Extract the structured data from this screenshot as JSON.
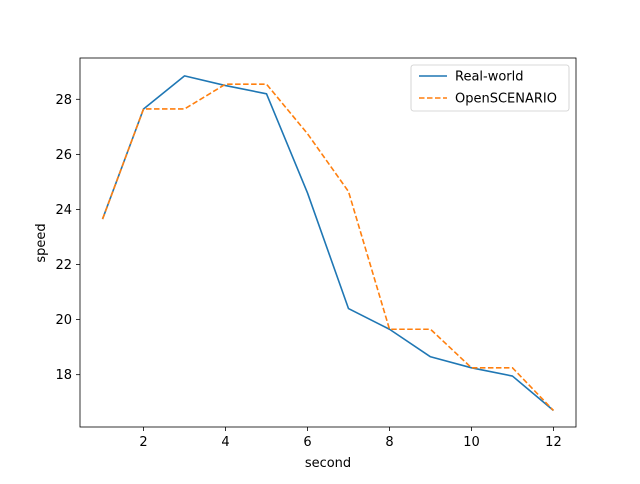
{
  "chart_data": {
    "type": "line",
    "title": "",
    "xlabel": "second",
    "ylabel": "speed",
    "xlim": [
      0.45,
      12.55
    ],
    "ylim": [
      16.1,
      29.5
    ],
    "x_ticks": [
      2,
      4,
      6,
      8,
      10,
      12
    ],
    "y_ticks": [
      18,
      20,
      22,
      24,
      26,
      28
    ],
    "grid": false,
    "legend_position": "top-right",
    "x": [
      1,
      2,
      3,
      4,
      5,
      6,
      7,
      8,
      9,
      10,
      11,
      12
    ],
    "series": [
      {
        "name": "Real-world",
        "color": "#1f77b4",
        "style": "solid",
        "values": [
          23.65,
          27.65,
          28.85,
          28.5,
          28.2,
          24.6,
          20.4,
          19.65,
          18.65,
          18.25,
          17.95,
          16.7
        ]
      },
      {
        "name": "OpenSCENARIO",
        "color": "#ff7f0e",
        "style": "dashed",
        "values": [
          23.65,
          27.65,
          27.65,
          28.55,
          28.55,
          26.75,
          24.65,
          19.65,
          19.65,
          18.25,
          18.25,
          16.7
        ]
      }
    ]
  }
}
